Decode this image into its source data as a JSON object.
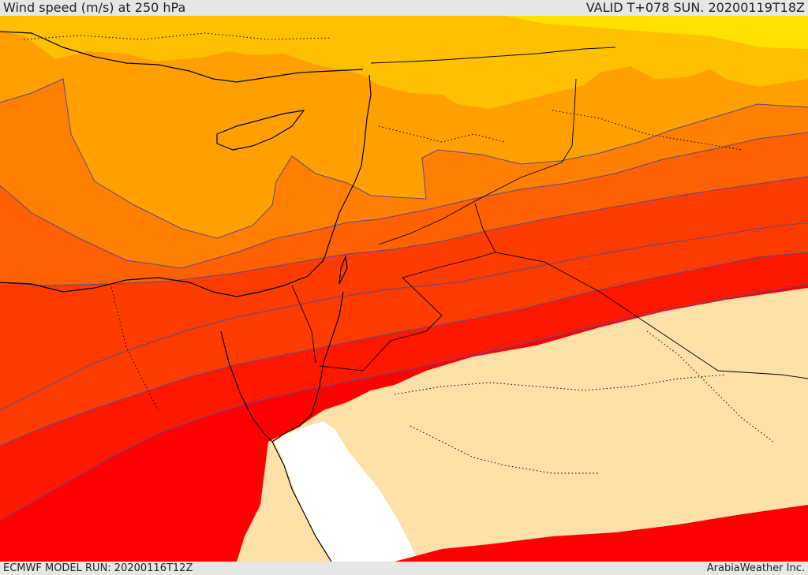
{
  "header": {
    "title": "Wind speed (m/s) at 250 hPa",
    "valid": "VALID T+078 SUN. 20200119T18Z"
  },
  "footer": {
    "model_run": "ECMWF MODEL RUN: 20200116T12Z",
    "credit": "ArabiaWeather Inc."
  },
  "map": {
    "parameter": "wind speed",
    "units": "m/s",
    "level": "250 hPa",
    "palette": {
      "calm": "#fde1a9",
      "sea": "#ffffff",
      "band_1": "#ffe000",
      "band_2": "#ffc000",
      "band_3": "#ffa000",
      "band_4": "#ff8000",
      "band_5": "#ff6000",
      "band_6": "#ff3c00",
      "band_7": "#ff1800",
      "band_8": "#ff0000",
      "coastline": "#000000",
      "contour": "#5a4a8a"
    }
  }
}
